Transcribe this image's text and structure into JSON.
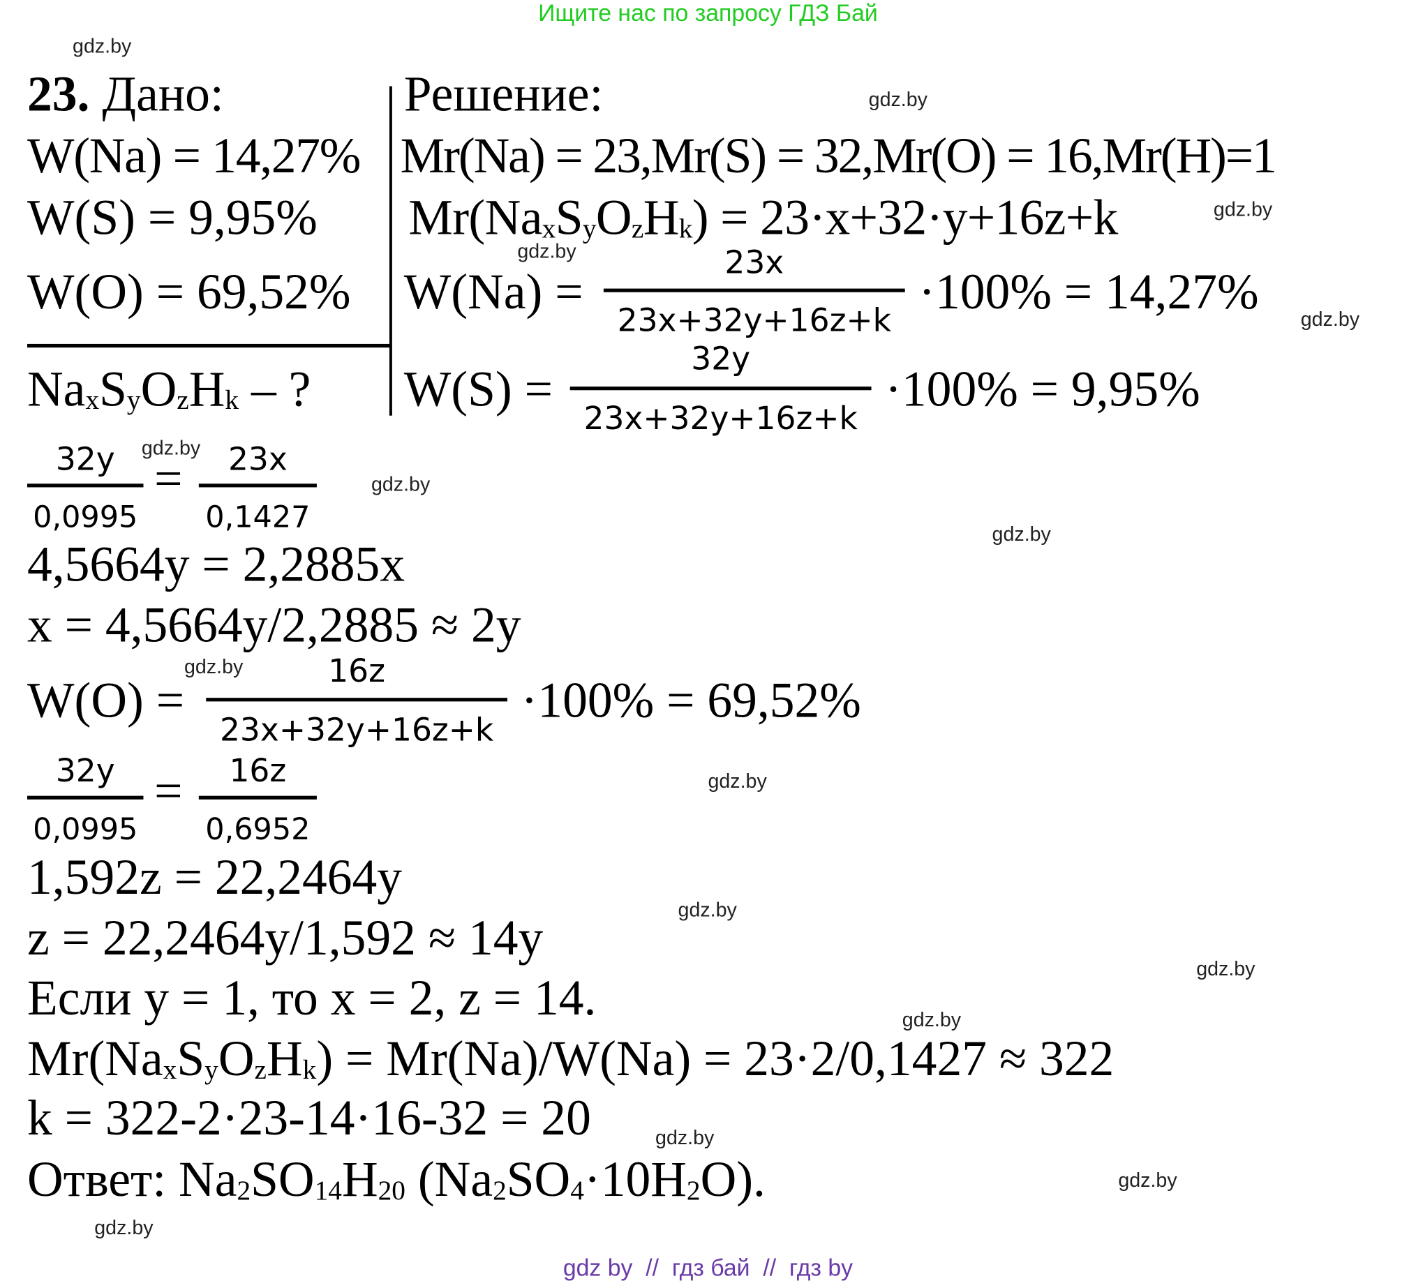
{
  "header": {
    "text": "Ищите нас по запросу ГДЗ Бай",
    "color": "#22cc22"
  },
  "footer": {
    "text": "gdz by  //  гдз бай  //  гдз by",
    "color": "#6a3aa8"
  },
  "watermark": "gdz.by",
  "given": {
    "number": "23.",
    "title": "Дано:",
    "items": [
      "W(Na) = 14,27%",
      "W(S) = 9,95%",
      "W(O) = 69,52%"
    ],
    "find": [
      {
        "t": "Na"
      },
      {
        "s": "x"
      },
      {
        "t": "S"
      },
      {
        "s": "y"
      },
      {
        "t": "O"
      },
      {
        "s": "z"
      },
      {
        "t": "H"
      },
      {
        "s": "k"
      },
      {
        "t": " – ?"
      }
    ]
  },
  "solution": {
    "title": "Решение:",
    "masses": "Mr(Na) = 23,Mr(S) = 32,Mr(O) = 16,Mr(H)=1",
    "molar": [
      {
        "t": "Mr(Na"
      },
      {
        "s": "x"
      },
      {
        "t": "S"
      },
      {
        "s": "y"
      },
      {
        "t": "O"
      },
      {
        "s": "z"
      },
      {
        "t": "H"
      },
      {
        "s": "k"
      },
      {
        "t": ") = 23·x+32·y+16z+k"
      }
    ],
    "wna": {
      "lhs": "W(Na) =",
      "num": "23x",
      "den": "23x+32y+16z+k",
      "rhs": "·100% = 14,27%"
    },
    "ws": {
      "lhs": "W(S) =",
      "num": "32y",
      "den": "23x+32y+16z+k",
      "rhs": "·100% = 9,95%"
    },
    "ratio1": {
      "num1": "32y",
      "den1": "0,0995",
      "eq": "=",
      "num2": "23x",
      "den2": "0,1427"
    },
    "eq1": "4,5664y = 2,2885x",
    "eq2": "x = 4,5664y/2,2885 ≈ 2y",
    "wo": {
      "lhs": "W(O) =",
      "num": "16z",
      "den": "23x+32y+16z+k",
      "rhs": "·100% = 69,52%"
    },
    "ratio2": {
      "num1": "32y",
      "den1": "0,0995",
      "eq": "=",
      "num2": "16z",
      "den2": "0,6952"
    },
    "eq3": "1,592z = 22,2464y",
    "eq4": "z = 22,2464y/1,592 ≈ 14y",
    "eq5": "Если y = 1, то x = 2, z = 14.",
    "eq6": [
      {
        "t": "Mr(Na"
      },
      {
        "s": "x"
      },
      {
        "t": "S"
      },
      {
        "s": "y"
      },
      {
        "t": "O"
      },
      {
        "s": "z"
      },
      {
        "t": "H"
      },
      {
        "s": "k"
      },
      {
        "t": ") = Mr(Na)/W(Na) = 23·2/0,1427 ≈ 322"
      }
    ],
    "eq7": "k = 322-2·23-14·16-32 = 20",
    "answer": [
      {
        "t": "Ответ: Na"
      },
      {
        "s": "2"
      },
      {
        "t": "SO"
      },
      {
        "s": "14"
      },
      {
        "t": "H"
      },
      {
        "s": "20"
      },
      {
        "t": " (Na"
      },
      {
        "s": "2"
      },
      {
        "t": "SO"
      },
      {
        "s": "4"
      },
      {
        "t": "·10H"
      },
      {
        "s": "2"
      },
      {
        "t": "O)."
      }
    ]
  }
}
